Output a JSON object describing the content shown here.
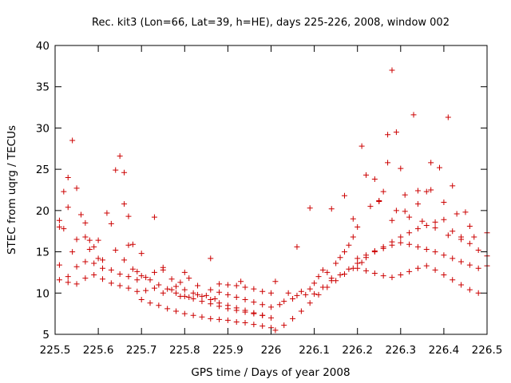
{
  "chart_data": {
    "type": "scatter",
    "title": "Rec. kit3 (Lon=66, Lat=39, h=HE), days 225-226, 2008, window 002",
    "xlabel": "GPS time / Days of year 2008",
    "ylabel": "STEC from uqrg / TECUs",
    "xlim": [
      225.5,
      226.5
    ],
    "ylim": [
      5,
      40
    ],
    "xticks": [
      225.5,
      225.6,
      225.7,
      225.8,
      225.9,
      226.0,
      226.1,
      226.2,
      226.3,
      226.4,
      226.5
    ],
    "xtick_labels": [
      "225.5",
      "225.6",
      "225.7",
      "225.8",
      "225.9",
      "226",
      "226.1",
      "226.2",
      "226.3",
      "226.4",
      "226.5"
    ],
    "yticks": [
      5,
      10,
      15,
      20,
      25,
      30,
      35,
      40
    ],
    "ytick_labels": [
      "5",
      "10",
      "15",
      "20",
      "25",
      "30",
      "35",
      "40"
    ],
    "marker": "+",
    "color": "#cc0000",
    "grid": false,
    "series": [
      {
        "name": "STEC",
        "x": [
          225.51,
          225.51,
          225.52,
          225.53,
          225.53,
          225.54,
          225.55,
          225.56,
          225.57,
          225.57,
          225.58,
          225.59,
          225.6,
          225.62,
          225.63,
          225.64,
          225.65,
          225.66,
          225.66,
          225.67,
          225.68,
          225.52,
          225.55,
          225.58,
          225.61,
          225.64,
          225.67,
          225.7,
          225.73,
          225.51,
          225.53,
          225.55,
          225.57,
          225.59,
          225.61,
          225.63,
          225.65,
          225.67,
          225.69,
          225.71,
          225.73,
          225.75,
          225.77,
          225.79,
          225.81,
          225.83,
          225.51,
          225.53,
          225.55,
          225.57,
          225.59,
          225.61,
          225.63,
          225.65,
          225.67,
          225.69,
          225.71,
          225.73,
          225.75,
          225.77,
          225.79,
          225.81,
          225.83,
          225.85,
          225.87,
          225.66,
          225.68,
          225.7,
          225.72,
          225.74,
          225.76,
          225.78,
          225.8,
          225.82,
          225.84,
          225.86,
          225.88,
          225.9,
          225.92,
          225.94,
          225.96,
          225.98,
          225.7,
          225.72,
          225.74,
          225.76,
          225.78,
          225.8,
          225.82,
          225.84,
          225.86,
          225.88,
          225.9,
          225.92,
          225.94,
          225.96,
          225.98,
          226.0,
          225.78,
          225.8,
          225.82,
          225.84,
          225.86,
          225.88,
          225.9,
          225.92,
          225.94,
          225.96,
          225.98,
          226.0,
          225.86,
          225.88,
          225.9,
          225.92,
          225.94,
          225.96,
          225.98,
          226.0,
          225.88,
          225.9,
          225.92,
          225.94,
          225.96,
          225.98,
          226.0,
          226.01,
          226.02,
          226.03,
          226.04,
          226.05,
          226.06,
          226.07,
          226.08,
          226.09,
          226.1,
          226.11,
          226.12,
          226.13,
          226.14,
          226.15,
          226.16,
          226.17,
          226.18,
          226.19,
          226.2,
          226.01,
          226.03,
          226.05,
          226.07,
          226.09,
          226.11,
          226.13,
          226.15,
          226.17,
          226.19,
          226.21,
          226.1,
          226.12,
          226.14,
          226.16,
          226.18,
          226.2,
          226.22,
          226.24,
          226.26,
          226.28,
          226.3,
          226.32,
          226.34,
          226.36,
          226.38,
          226.4,
          226.42,
          226.44,
          226.46,
          226.48,
          226.5,
          226.2,
          226.22,
          226.24,
          226.26,
          226.28,
          226.3,
          226.32,
          226.34,
          226.36,
          226.38,
          226.4,
          226.42,
          226.44,
          226.46,
          226.48,
          226.5,
          226.2,
          226.22,
          226.24,
          226.26,
          226.28,
          226.3,
          226.32,
          226.34,
          226.36,
          226.38,
          226.4,
          226.42,
          226.44,
          226.46,
          226.48,
          226.21,
          226.22,
          226.24,
          226.25,
          226.27,
          226.27,
          226.28,
          226.29,
          226.3,
          226.33,
          226.34,
          226.37,
          226.39,
          226.41,
          226.42,
          226.28,
          226.31,
          226.34,
          226.37,
          226.4,
          226.43,
          226.46,
          226.25,
          226.29,
          226.32,
          226.35,
          226.38,
          226.41,
          226.44,
          226.47,
          226.5,
          225.54,
          225.6,
          225.69,
          225.75,
          225.8,
          225.86,
          225.93,
          226.06,
          226.09,
          226.14,
          226.17,
          226.19,
          226.23,
          226.26,
          226.31,
          226.36,
          226.45
        ],
        "y": [
          18.0,
          18.8,
          22.3,
          20.4,
          24.0,
          28.5,
          22.7,
          19.5,
          18.5,
          16.8,
          16.4,
          15.6,
          16.4,
          19.7,
          18.4,
          24.9,
          26.6,
          20.8,
          24.6,
          19.3,
          15.9,
          17.8,
          16.5,
          15.3,
          14.0,
          15.2,
          15.8,
          14.8,
          19.2,
          13.4,
          12.0,
          13.2,
          13.8,
          13.6,
          13.0,
          12.8,
          12.3,
          12.0,
          11.6,
          11.9,
          12.5,
          12.8,
          11.7,
          11.3,
          11.8,
          10.9,
          11.6,
          11.3,
          11.1,
          11.8,
          12.2,
          11.7,
          11.2,
          10.9,
          10.6,
          10.2,
          10.3,
          10.6,
          10.0,
          10.4,
          9.6,
          9.5,
          9.8,
          9.7,
          9.3,
          14.0,
          12.9,
          12.1,
          11.6,
          11.0,
          10.5,
          10.0,
          9.6,
          9.3,
          9.0,
          8.7,
          8.4,
          8.1,
          7.9,
          7.7,
          7.5,
          7.3,
          9.2,
          8.8,
          8.5,
          8.1,
          7.8,
          7.5,
          7.3,
          7.1,
          6.9,
          6.8,
          6.7,
          6.5,
          6.4,
          6.2,
          6.0,
          5.8,
          10.8,
          10.4,
          10.0,
          9.6,
          9.2,
          8.8,
          8.5,
          8.2,
          7.9,
          7.6,
          7.3,
          7.0,
          10.4,
          10.1,
          9.8,
          9.5,
          9.2,
          8.9,
          8.6,
          8.3,
          11.1,
          11.0,
          10.9,
          10.7,
          10.5,
          10.2,
          10.0,
          11.4,
          8.6,
          9.0,
          10.0,
          9.3,
          9.7,
          10.2,
          9.8,
          10.5,
          11.2,
          12.0,
          12.8,
          12.5,
          11.8,
          13.6,
          14.3,
          15.0,
          15.8,
          16.8,
          18.0,
          5.5,
          6.1,
          6.9,
          7.8,
          8.8,
          9.8,
          10.7,
          11.5,
          12.3,
          13.0,
          13.7,
          9.9,
          10.7,
          11.5,
          12.2,
          12.9,
          13.6,
          14.3,
          15.0,
          15.6,
          16.2,
          16.8,
          17.3,
          17.8,
          18.2,
          18.6,
          18.9,
          17.5,
          16.8,
          16.0,
          15.2,
          14.5,
          14.2,
          14.6,
          15.1,
          15.4,
          15.8,
          16.1,
          15.9,
          15.6,
          15.3,
          15.0,
          14.6,
          14.2,
          13.8,
          13.4,
          13.0,
          13.3,
          13.0,
          12.7,
          12.4,
          12.1,
          11.9,
          12.2,
          12.6,
          13.0,
          13.3,
          12.8,
          12.2,
          11.6,
          11.0,
          10.4,
          10.0,
          27.8,
          24.3,
          23.8,
          21.2,
          25.8,
          29.2,
          37.0,
          29.5,
          25.1,
          31.6,
          22.4,
          25.8,
          25.2,
          31.3,
          23.0,
          18.8,
          19.9,
          20.8,
          22.5,
          21.0,
          19.6,
          18.1,
          21.1,
          20.0,
          19.2,
          18.7,
          17.9,
          17.0,
          16.5,
          16.8,
          17.3,
          15.0,
          14.2,
          12.6,
          13.1,
          12.5,
          14.2,
          11.4,
          15.6,
          20.3,
          20.2,
          21.8,
          19.0,
          20.5,
          22.3,
          21.9,
          22.3,
          19.8
        ]
      }
    ]
  }
}
